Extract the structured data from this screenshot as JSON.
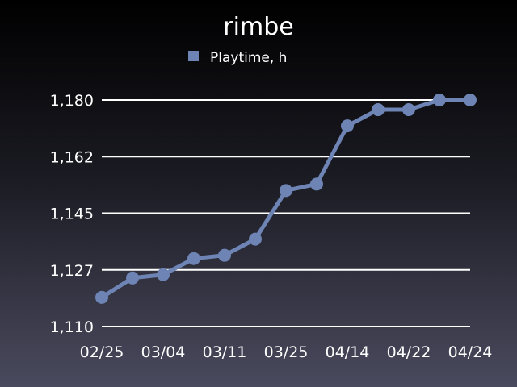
{
  "chart_data": {
    "type": "line",
    "title": "rimbe",
    "xlabel": "",
    "ylabel": "",
    "series": [
      {
        "name": "Playtime, h",
        "color": "#6d84b4",
        "values": [
          1119,
          1125,
          1126,
          1131,
          1132,
          1137,
          1152,
          1154,
          1172,
          1177,
          1177,
          1180,
          1180
        ]
      }
    ],
    "x_tick_labels": [
      "02/25",
      "03/04",
      "03/11",
      "03/25",
      "04/14",
      "04/22",
      "04/24"
    ],
    "y_ticks": [
      "1,110",
      "1,127",
      "1,145",
      "1,162",
      "1,180"
    ],
    "y_tick_values": [
      1110,
      1127.5,
      1145,
      1162.5,
      1180
    ],
    "ylim": [
      1110,
      1180
    ],
    "grid": true,
    "legend_position": "top-center",
    "colors": {
      "gridline": "#ffffff",
      "series": "#6d84b4",
      "background_top": "#000000",
      "background_bottom": "#4a4a5e"
    }
  }
}
